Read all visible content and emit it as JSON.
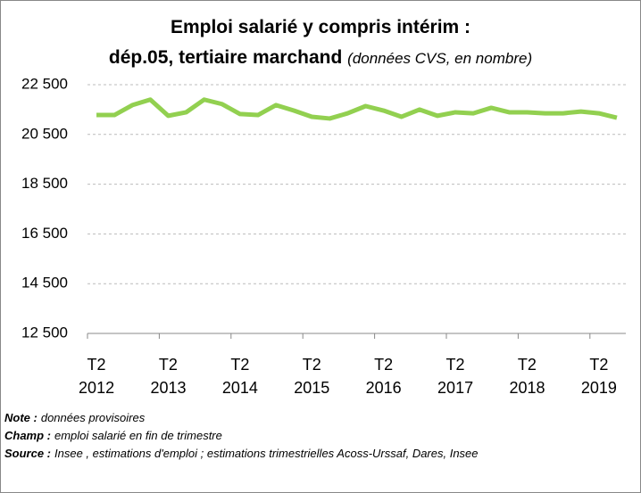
{
  "chart_data": {
    "type": "line",
    "title": [
      "Emploi salarié y compris intérim :",
      "dép.05, tertiaire marchand"
    ],
    "subtitle": "(données CVS, en nombre)",
    "categories": [
      "T2 2012",
      null,
      null,
      null,
      "T2 2013",
      null,
      null,
      null,
      "T2 2014",
      null,
      null,
      null,
      "T2 2015",
      null,
      null,
      null,
      "T2 2016",
      null,
      null,
      null,
      "T2 2017",
      null,
      null,
      null,
      "T2 2018",
      null,
      null,
      null,
      "T2 2019",
      null
    ],
    "series": [
      {
        "name": "Emploi salarié",
        "color": "#92d050",
        "values": [
          21280,
          21280,
          21680,
          21900,
          21250,
          21390,
          21900,
          21720,
          21320,
          21280,
          21680,
          21460,
          21210,
          21140,
          21350,
          21640,
          21460,
          21210,
          21500,
          21250,
          21390,
          21350,
          21570,
          21390,
          21390,
          21350,
          21350,
          21420,
          21350,
          21170
        ]
      }
    ],
    "ylim": [
      12500,
      22500
    ],
    "yticks": [
      {
        "value": 12500,
        "label": "12 500"
      },
      {
        "value": 14500,
        "label": "14 500"
      },
      {
        "value": 16500,
        "label": "16 500"
      },
      {
        "value": 18500,
        "label": "18 500"
      },
      {
        "value": 20500,
        "label": "20 500"
      },
      {
        "value": 22500,
        "label": "22 500"
      }
    ],
    "grid": true,
    "notes": [
      {
        "label": "Note :",
        "text": "données provisoires"
      },
      {
        "label": "Champ :",
        "text": "emploi salarié en fin de trimestre"
      },
      {
        "label": "Source :",
        "text": "Insee , estimations d'emploi ; estimations trimestrielles Acoss-Urssaf, Dares, Insee"
      }
    ]
  }
}
